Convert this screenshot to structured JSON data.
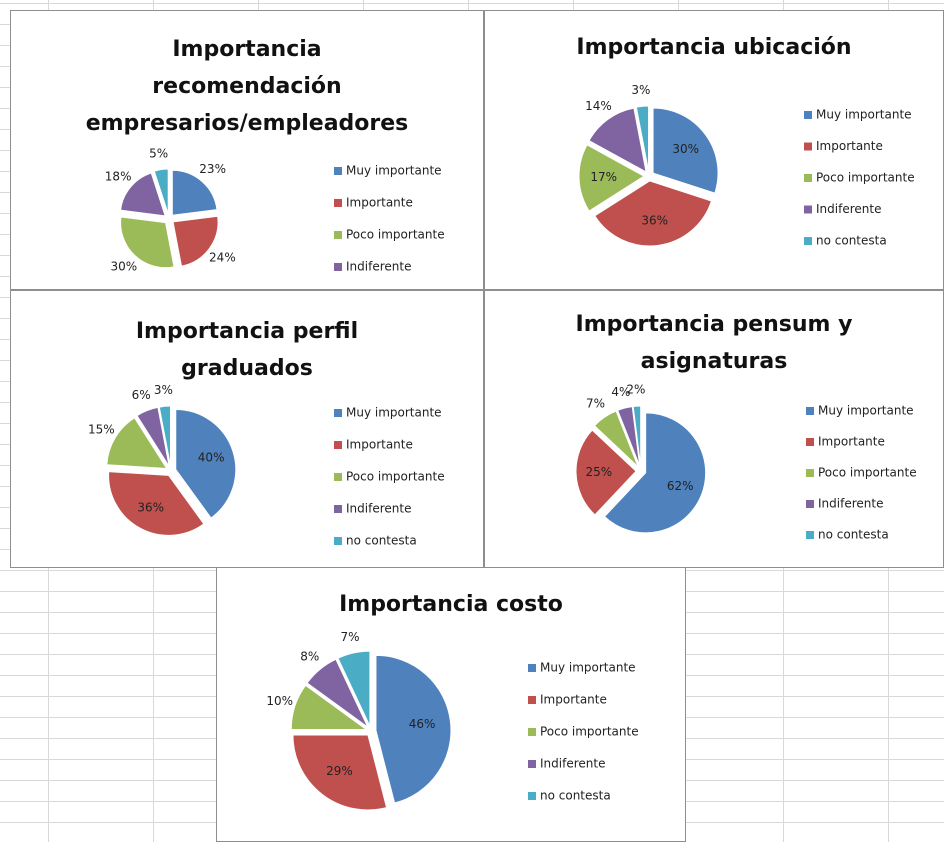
{
  "chart_data": [
    {
      "type": "pie",
      "title": [
        "Importancia",
        "recomendación",
        "empresarios/empleadores"
      ],
      "categories": [
        "Muy importante",
        "Importante",
        "Poco importante",
        "Indiferente",
        null
      ],
      "values": [
        23,
        24,
        30,
        18,
        5
      ],
      "value_labels": [
        "23%",
        "24%",
        "30%",
        "18%",
        "5%"
      ],
      "colors": [
        "#4f81bd",
        "#c0504d",
        "#9bbb59",
        "#8064a2",
        "#4bacc6"
      ],
      "legend": "right"
    },
    {
      "type": "pie",
      "title": [
        "Importancia ubicación"
      ],
      "categories": [
        "Muy importante",
        "Importante",
        "Poco importante",
        "Indiferente",
        "no contesta"
      ],
      "values": [
        30,
        36,
        17,
        14,
        3
      ],
      "value_labels": [
        "30%",
        "36%",
        "17%",
        "14%",
        "3%"
      ],
      "colors": [
        "#4f81bd",
        "#c0504d",
        "#9bbb59",
        "#8064a2",
        "#4bacc6"
      ],
      "legend": "right"
    },
    {
      "type": "pie",
      "title": [
        "Importancia perfil",
        "graduados"
      ],
      "categories": [
        "Muy importante",
        "Importante",
        "Poco importante",
        "Indiferente",
        "no contesta"
      ],
      "values": [
        40,
        36,
        15,
        6,
        3
      ],
      "value_labels": [
        "40%",
        "36%",
        "15%",
        "6%",
        "3%"
      ],
      "colors": [
        "#4f81bd",
        "#c0504d",
        "#9bbb59",
        "#8064a2",
        "#4bacc6"
      ],
      "legend": "right"
    },
    {
      "type": "pie",
      "title": [
        "Importancia pensum y",
        "asignaturas"
      ],
      "categories": [
        "Muy importante",
        "Importante",
        "Poco importante",
        "Indiferente",
        "no contesta"
      ],
      "values": [
        62,
        25,
        7,
        4,
        2
      ],
      "value_labels": [
        "62%",
        "25%",
        "7%",
        "4%",
        "2%"
      ],
      "colors": [
        "#4f81bd",
        "#c0504d",
        "#9bbb59",
        "#8064a2",
        "#4bacc6"
      ],
      "legend": "right"
    },
    {
      "type": "pie",
      "title": [
        "Importancia costo"
      ],
      "categories": [
        "Muy importante",
        "Importante",
        "Poco importante",
        "Indiferente",
        "no contesta"
      ],
      "values": [
        46,
        29,
        10,
        8,
        7
      ],
      "value_labels": [
        "46%",
        "29%",
        "10%",
        "8%",
        "7%"
      ],
      "colors": [
        "#4f81bd",
        "#c0504d",
        "#9bbb59",
        "#8064a2",
        "#4bacc6"
      ],
      "legend": "right"
    }
  ]
}
